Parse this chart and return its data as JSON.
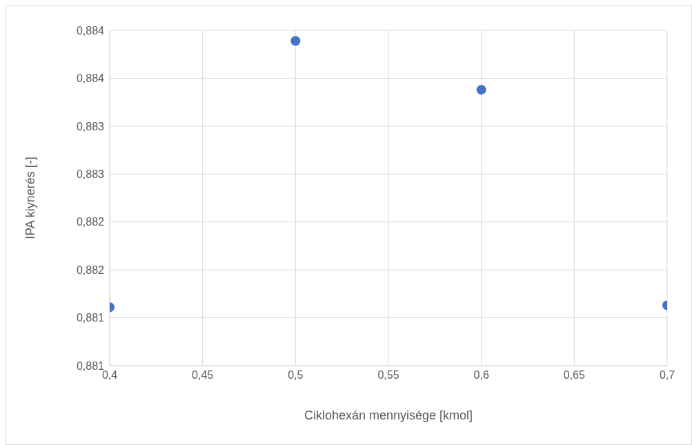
{
  "chart_data": {
    "type": "scatter",
    "xlabel": "Ciklohexán mennyisége [kmol]",
    "ylabel": "IPA kiynerés [-]",
    "x": [
      0.4,
      0.5,
      0.6,
      0.7
    ],
    "series": [
      {
        "color": "#4472c4",
        "values": [
          0.88111,
          0.88389,
          0.88338,
          0.88113
        ]
      }
    ],
    "xlim": [
      0.4,
      0.7
    ],
    "xticks": [
      {
        "value": 0.4,
        "label": "0,4"
      },
      {
        "value": 0.45,
        "label": "0,45"
      },
      {
        "value": 0.5,
        "label": "0,5"
      },
      {
        "value": 0.55,
        "label": "0,55"
      },
      {
        "value": 0.6,
        "label": "0,6"
      },
      {
        "value": 0.65,
        "label": "0,65"
      },
      {
        "value": 0.7,
        "label": "0,7"
      }
    ],
    "ylim": [
      0.8805,
      0.884
    ],
    "yticks": [
      {
        "value": 0.8805,
        "label": "0,881"
      },
      {
        "value": 0.881,
        "label": "0,881"
      },
      {
        "value": 0.8815,
        "label": "0,882"
      },
      {
        "value": 0.882,
        "label": "0,882"
      },
      {
        "value": 0.8825,
        "label": "0,883"
      },
      {
        "value": 0.883,
        "label": "0,883"
      },
      {
        "value": 0.8835,
        "label": "0,884"
      },
      {
        "value": 0.884,
        "label": "0,884"
      }
    ],
    "grid": true,
    "marker": "circle"
  }
}
